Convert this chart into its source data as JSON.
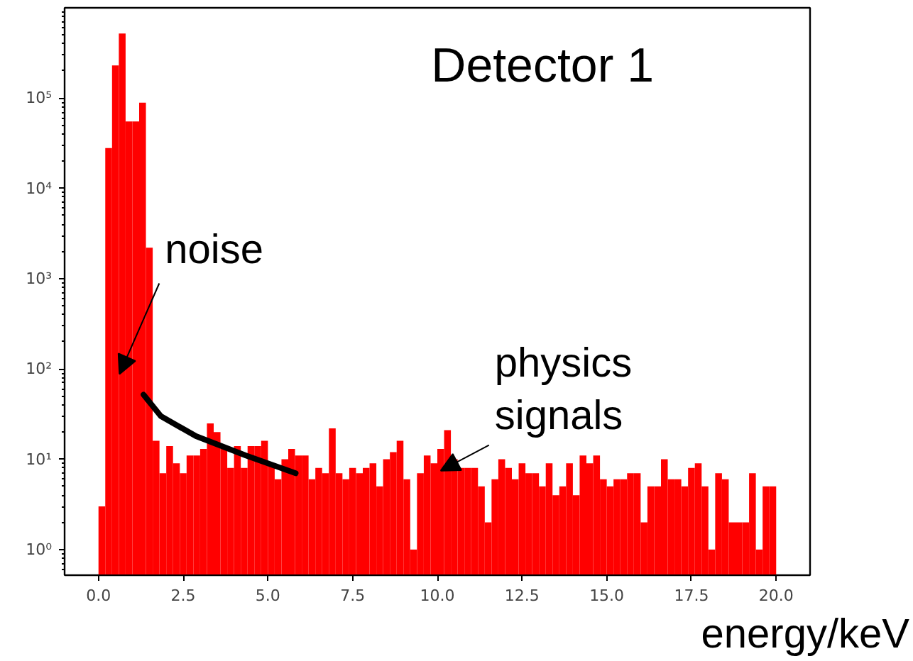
{
  "chart_data": {
    "type": "histogram",
    "title": "Detector 1",
    "xlabel": "energy/keV",
    "color": "#ff0000",
    "log": "y",
    "grid": false,
    "bins": [
      0,
      0.2,
      0.4,
      0.6,
      0.8,
      1,
      1.2,
      1.4,
      1.6,
      1.8,
      2,
      2.2,
      2.4,
      2.6,
      2.8,
      3,
      3.2,
      3.4,
      3.6,
      3.8,
      4,
      4.2,
      4.4,
      4.6,
      4.8,
      5,
      5.2,
      5.4,
      5.6,
      5.8,
      6,
      6.2,
      6.4,
      6.6,
      6.8,
      7,
      7.2,
      7.4,
      7.6,
      7.8,
      8,
      8.2,
      8.4,
      8.6,
      8.8,
      9,
      9.2,
      9.4,
      9.6,
      9.8,
      10,
      10.2,
      10.4,
      10.6,
      10.8,
      11,
      11.2,
      11.4,
      11.6,
      11.8,
      12,
      12.2,
      12.4,
      12.6,
      12.8,
      13,
      13.2,
      13.4,
      13.6,
      13.8,
      14,
      14.2,
      14.4,
      14.6,
      14.8,
      15,
      15.2,
      15.4,
      15.6,
      15.8,
      16,
      16.2,
      16.4,
      16.6,
      16.8,
      17,
      17.2,
      17.4,
      17.6,
      17.8,
      18,
      18.2,
      18.4,
      18.6,
      18.8,
      19,
      19.2,
      19.4,
      19.6,
      19.8,
      20
    ],
    "values": [
      3,
      28000,
      230000,
      520000,
      55000,
      55000,
      89000,
      2200,
      16,
      7,
      14,
      9,
      7,
      11,
      11,
      13,
      25,
      20,
      13,
      8,
      14,
      8,
      14,
      14,
      16,
      9,
      6,
      10,
      13,
      11,
      11,
      6,
      8,
      7,
      22,
      7,
      6,
      8,
      7,
      8,
      9,
      5,
      10,
      12,
      16,
      6,
      1,
      7,
      11,
      9,
      13,
      21,
      10,
      8,
      8,
      8,
      5,
      2,
      6,
      10,
      8,
      6,
      9,
      7,
      7,
      5,
      9,
      4,
      5,
      9,
      4,
      11,
      9,
      11,
      6,
      5,
      6,
      6,
      7,
      7,
      2,
      5,
      5,
      10,
      6,
      6,
      5,
      8,
      9,
      5,
      1,
      7,
      6,
      2,
      2,
      2,
      7,
      1,
      5,
      5
    ],
    "series": [
      {
        "type": "line",
        "color": "#000000",
        "x": [
          1.33,
          1.84,
          2.88,
          4.35,
          5.82
        ],
        "values": [
          52,
          30,
          18,
          11,
          7
        ]
      }
    ],
    "annotations": [
      {
        "text": "noise",
        "x": 0.62,
        "y": 100
      },
      {
        "text": "physics\nsignals",
        "x": 10.1,
        "y": 8
      }
    ],
    "xlim": [
      -1,
      21
    ],
    "ylim": [
      0.52,
      1000000
    ],
    "xticks": [
      {
        "value": 0,
        "label": "0.0"
      },
      {
        "value": 2.5,
        "label": "2.5"
      },
      {
        "value": 5,
        "label": "5.0"
      },
      {
        "value": 7.5,
        "label": "7.5"
      },
      {
        "value": 10,
        "label": "10.0"
      },
      {
        "value": 12.5,
        "label": "12.5"
      },
      {
        "value": 15,
        "label": "15.0"
      },
      {
        "value": 17.5,
        "label": "17.5"
      },
      {
        "value": 20,
        "label": "20.0"
      }
    ],
    "yticks": [
      {
        "value": 1,
        "label": "10⁰"
      },
      {
        "value": 10,
        "label": "10¹"
      },
      {
        "value": 100,
        "label": "10²"
      },
      {
        "value": 1000,
        "label": "10³"
      },
      {
        "value": 10000,
        "label": "10⁴"
      },
      {
        "value": 100000,
        "label": "10⁵"
      }
    ]
  }
}
